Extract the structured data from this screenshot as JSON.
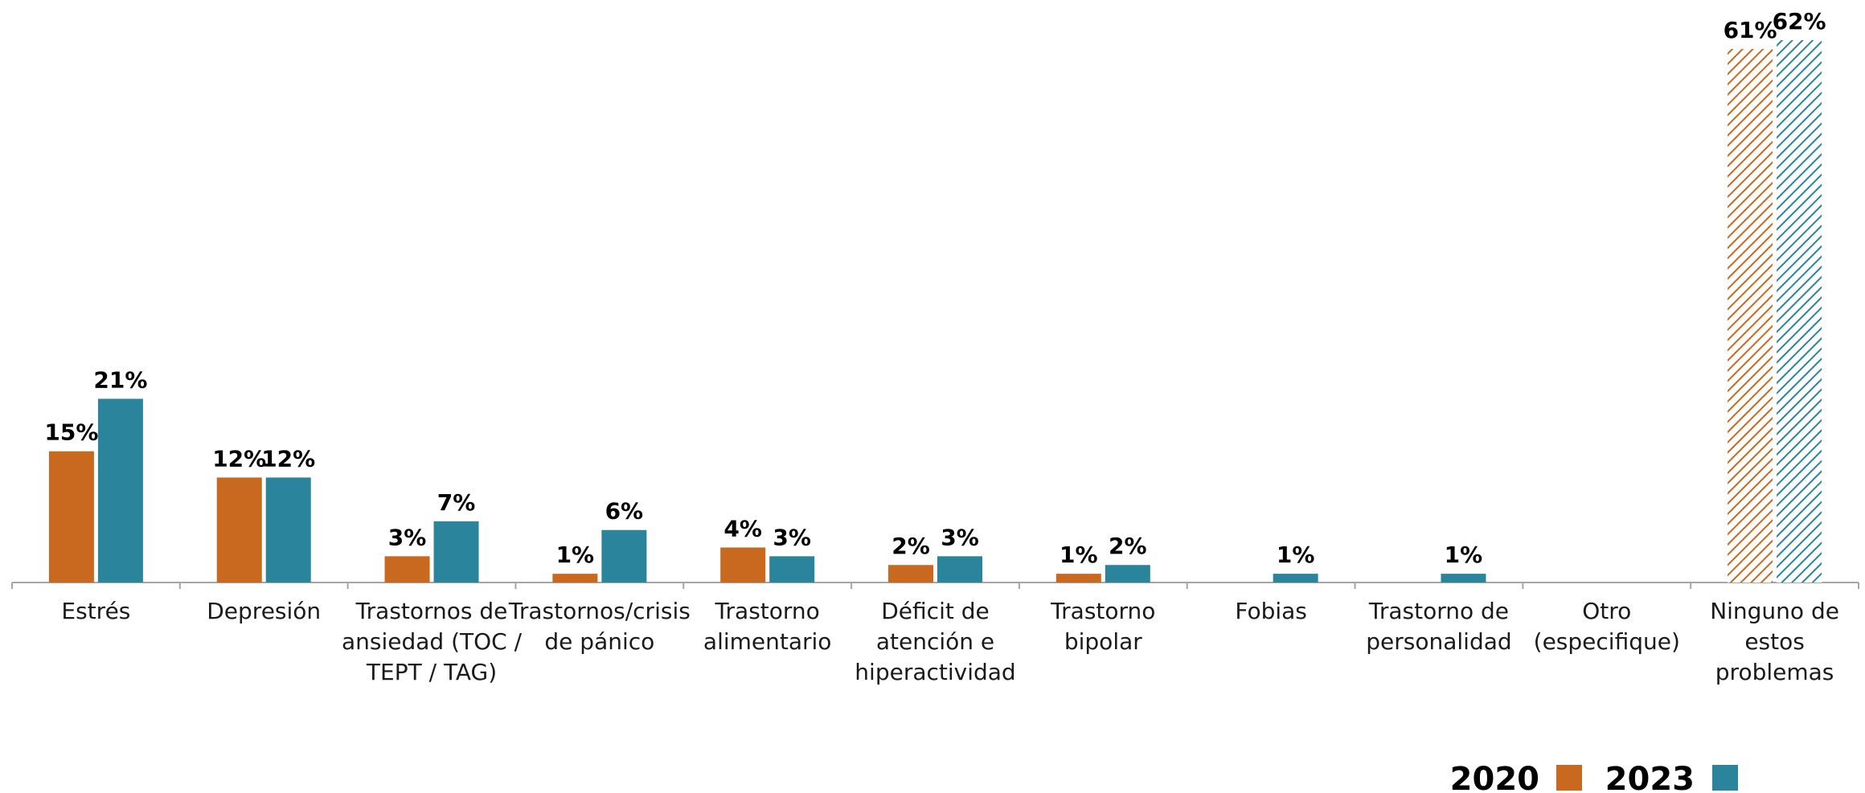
{
  "chart_data": {
    "type": "bar",
    "categories": [
      "Estrés",
      "Depresión",
      "Trastornos de ansiedad (TOC / TEPT / TAG)",
      "Trastornos/crisis de pánico",
      "Trastorno alimentario",
      "Déficit de atención e hiperactividad",
      "Trastorno bipolar",
      "Fobias",
      "Trastorno de personalidad",
      "Otro (especifique)",
      "Ninguno de estos problemas"
    ],
    "category_lines": [
      [
        "Estrés"
      ],
      [
        "Depresión"
      ],
      [
        "Trastornos de",
        "ansiedad (TOC /",
        "TEPT / TAG)"
      ],
      [
        "Trastornos/crisis",
        "de pánico"
      ],
      [
        "Trastorno",
        "alimentario"
      ],
      [
        "Déficit de",
        "atención e",
        "hiperactividad"
      ],
      [
        "Trastorno",
        "bipolar"
      ],
      [
        "Fobias"
      ],
      [
        "Trastorno de",
        "personalidad"
      ],
      [
        "Otro",
        "(especifique)"
      ],
      [
        "Ninguno de",
        "estos",
        "problemas"
      ]
    ],
    "series": [
      {
        "name": "2020",
        "color": "#c8691f",
        "values": [
          15,
          12,
          3,
          1,
          4,
          2,
          1,
          null,
          null,
          null,
          61
        ],
        "labels": [
          "15%",
          "12%",
          "3%",
          "1%",
          "4%",
          "2%",
          "1%",
          "",
          "",
          "",
          "61%"
        ]
      },
      {
        "name": "2023",
        "color": "#2a859c",
        "values": [
          21,
          12,
          7,
          6,
          3,
          3,
          2,
          1,
          1,
          null,
          62
        ],
        "labels": [
          "21%",
          "12%",
          "7%",
          "6%",
          "3%",
          "3%",
          "2%",
          "1%",
          "1%",
          "",
          "62%"
        ]
      }
    ],
    "hatched_categories": [
      "Ninguno de estos problemas"
    ],
    "ylim": [
      0,
      62
    ],
    "grid": false,
    "legend_position": "bottom-right",
    "title": "",
    "xlabel": "",
    "ylabel": ""
  }
}
